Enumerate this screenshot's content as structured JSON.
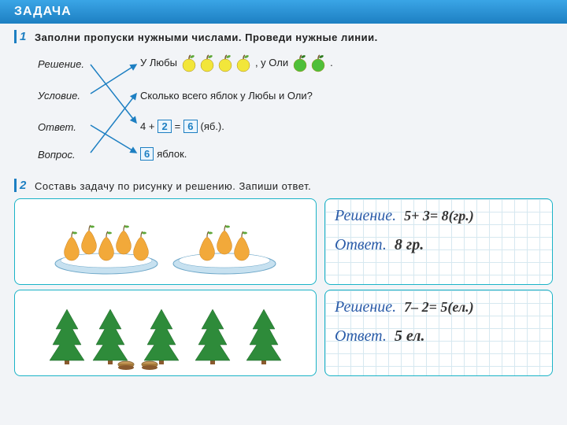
{
  "header": {
    "title": "ЗАДАЧА"
  },
  "task1": {
    "num": "1",
    "prompt": "Заполни пропуски нужными числами. Проведи нужные линии.",
    "labels": {
      "reshenie": "Решение.",
      "uslovie": "Условие.",
      "otvet": "Ответ.",
      "vopros": "Вопрос."
    },
    "line_reshenie": {
      "before": "У Любы",
      "apples_luba": {
        "count": 4,
        "fill": "#f2e63a",
        "leaf": "#5fa83a"
      },
      "mid": ", у Оли",
      "apples_olya": {
        "count": 2,
        "fill": "#4fbf3a",
        "leaf": "#2e7a1f"
      },
      "after": "."
    },
    "line_uslovie": "Сколько всего яблок у Любы и Оли?",
    "line_otvet": {
      "a": "4 +",
      "b": "2",
      "op": "=",
      "c": "6",
      "suffix": "(яб.)."
    },
    "line_vopros": {
      "val": "6",
      "suffix": "яблок."
    }
  },
  "task2": {
    "num": "2",
    "prompt": "Составь задачу по рисунку и решению. Запиши ответ.",
    "panel_pears": {
      "plates": [
        5,
        3
      ],
      "pear_fill": "#f2a93a",
      "pear_leaf": "#5fa83a",
      "plate_fill": "#c7e1f0",
      "solution_label": "Решение.",
      "solution_expr": "5+ 3= 8(гр.)",
      "answer_label": "Ответ.",
      "answer_val": "8 гр."
    },
    "panel_trees": {
      "trees": 5,
      "stumps": 2,
      "tree_fill": "#2e8b3a",
      "trunk": "#8a5a2e",
      "stump": "#c79a5a",
      "solution_label": "Решение.",
      "solution_expr": "7– 2= 5(ел.)",
      "answer_label": "Ответ.",
      "answer_val": "5 ел."
    }
  },
  "colors": {
    "accent": "#1d7fc2",
    "panel_border": "#1bb3c7"
  }
}
